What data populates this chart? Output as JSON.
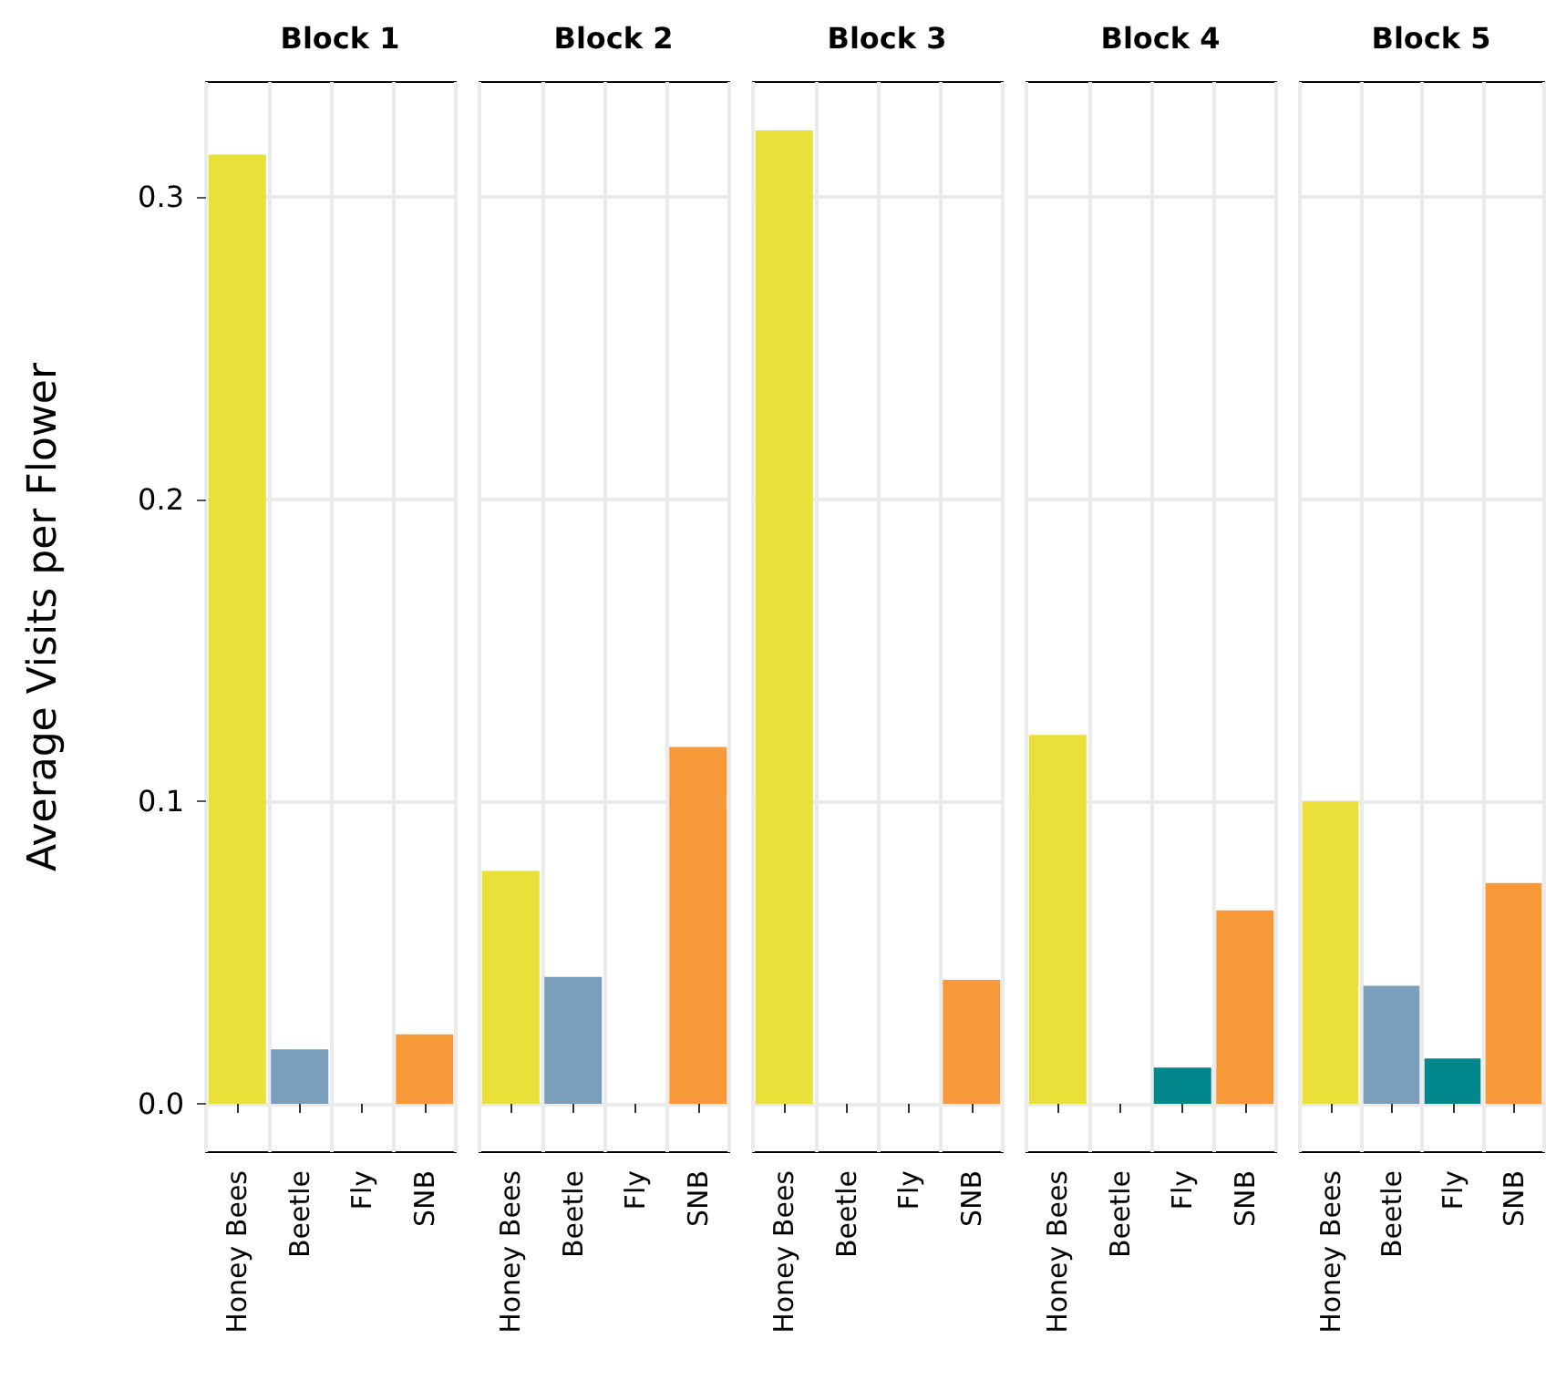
{
  "chart_data": [
    {
      "type": "bar",
      "title": "Block 1",
      "ylabel": "Average Visits per Flower",
      "categories": [
        "Honey Bees",
        "Beetle",
        "Fly",
        "SNB"
      ],
      "values": [
        0.314,
        0.018,
        0,
        0.023
      ],
      "colors": [
        "#e9e03a",
        "#7a9fbd",
        "#00868b",
        "#f99a3a"
      ],
      "ylim": [
        -0.016,
        0.338
      ],
      "yticks": [
        {
          "value": 0,
          "label": "0.0"
        },
        {
          "value": 0.1,
          "label": "0.1"
        },
        {
          "value": 0.2,
          "label": "0.2"
        },
        {
          "value": 0.3,
          "label": "0.3"
        }
      ],
      "grid": true
    },
    {
      "type": "bar",
      "title": "Block 2",
      "categories": [
        "Honey Bees",
        "Beetle",
        "Fly",
        "SNB"
      ],
      "values": [
        0.077,
        0.042,
        0,
        0.118
      ],
      "colors": [
        "#e9e03a",
        "#7a9fbd",
        "#00868b",
        "#f99a3a"
      ],
      "ylim": [
        -0.016,
        0.338
      ],
      "yticks": [
        0,
        0.1,
        0.2,
        0.3
      ],
      "grid": true,
      "tick_labels": "x"
    },
    {
      "type": "bar",
      "title": "Block 3",
      "categories": [
        "Honey Bees",
        "Beetle",
        "Fly",
        "SNB"
      ],
      "values": [
        0.322,
        0,
        0,
        0.041
      ],
      "colors": [
        "#e9e03a",
        "#7a9fbd",
        "#00868b",
        "#f99a3a"
      ],
      "ylim": [
        -0.016,
        0.338
      ],
      "yticks": [
        0,
        0.1,
        0.2,
        0.3
      ],
      "grid": true,
      "tick_labels": "x"
    },
    {
      "type": "bar",
      "title": "Block 4",
      "categories": [
        "Honey Bees",
        "Beetle",
        "Fly",
        "SNB"
      ],
      "values": [
        0.122,
        0,
        0.012,
        0.064
      ],
      "colors": [
        "#e9e03a",
        "#7a9fbd",
        "#00868b",
        "#f99a3a"
      ],
      "ylim": [
        -0.016,
        0.338
      ],
      "yticks": [
        0,
        0.1,
        0.2,
        0.3
      ],
      "grid": true,
      "tick_labels": "x"
    },
    {
      "type": "bar",
      "title": "Block 5",
      "categories": [
        "Honey Bees",
        "Beetle",
        "Fly",
        "SNB"
      ],
      "values": [
        0.1,
        0.039,
        0.015,
        0.073
      ],
      "colors": [
        "#e9e03a",
        "#7a9fbd",
        "#00868b",
        "#f99a3a"
      ],
      "ylim": [
        -0.016,
        0.338
      ],
      "yticks": [
        0,
        0.1,
        0.2,
        0.3
      ],
      "grid": true,
      "tick_labels": "x"
    }
  ]
}
